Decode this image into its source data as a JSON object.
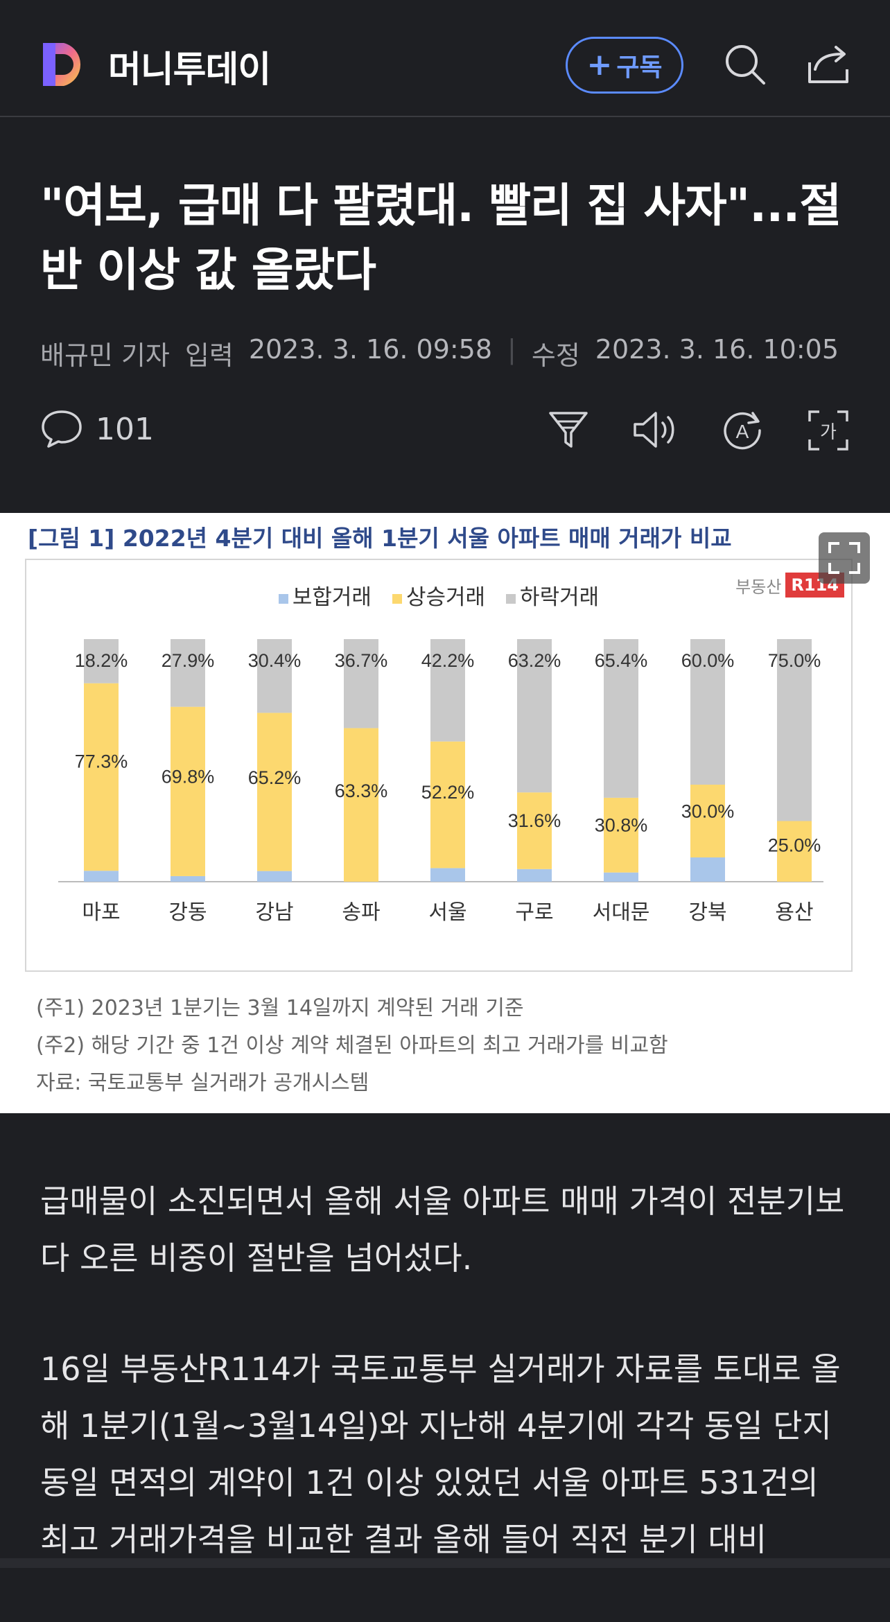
{
  "header": {
    "brand": "머니투데이",
    "subscribe_label": "구독",
    "subscribe_plus": "+"
  },
  "article": {
    "title": "\"여보, 급매 다 팔렸대. 빨리 집 사자\"...절반 이상 값 올랐다",
    "author": "배규민 기자",
    "input_label": "입력",
    "input_time": "2023. 3. 16. 09:58",
    "edit_label": "수정",
    "edit_time": "2023. 3. 16. 10:05",
    "comment_count": "101"
  },
  "figure": {
    "title": "[그림 1] 2022년 4분기 대비 올해 1분기 서울 아파트 매매 거래가 비교",
    "watermark_brand": "부동산",
    "watermark_r": "R114",
    "notes": [
      "(주1) 2023년 1분기는 3월 14일까지 계약된 거래 기준",
      "(주2) 해당 기간 중 1건 이상 계약 체결된 아파트의 최고 거래가를 비교함",
      "자료: 국토교통부 실거래가 공개시스템"
    ]
  },
  "chart_data": {
    "type": "bar",
    "stacked": true,
    "categories": [
      "마포",
      "강동",
      "강남",
      "송파",
      "서울",
      "구로",
      "서대문",
      "강북",
      "용산"
    ],
    "series": [
      {
        "name": "보합거래",
        "color": "#a9c6ea",
        "values": [
          4.5,
          2.3,
          4.4,
          0,
          5.6,
          5.2,
          3.8,
          10.0,
          0
        ],
        "labels": [
          "",
          "",
          "",
          "",
          "",
          "",
          "",
          "",
          ""
        ]
      },
      {
        "name": "상승거래",
        "color": "#fcd86f",
        "values": [
          77.3,
          69.8,
          65.2,
          63.3,
          52.2,
          31.6,
          30.8,
          30.0,
          25.0
        ],
        "labels": [
          "77.3%",
          "69.8%",
          "65.2%",
          "63.3%",
          "52.2%",
          "31.6%",
          "30.8%",
          "30.0%",
          "25.0%"
        ]
      },
      {
        "name": "하락거래",
        "color": "#c9c9c9",
        "values": [
          18.2,
          27.9,
          30.4,
          36.7,
          42.2,
          63.2,
          65.4,
          60.0,
          75.0
        ],
        "labels": [
          "18.2%",
          "27.9%",
          "30.4%",
          "36.7%",
          "42.2%",
          "63.2%",
          "65.4%",
          "60.0%",
          "75.0%"
        ]
      }
    ],
    "ylim": [
      0,
      100
    ],
    "legend": "top-center",
    "grid": false
  },
  "body": {
    "paragraphs": [
      "급매물이 소진되면서 올해 서울 아파트 매매 가격이 전분기보다 오른 비중이 절반을 넘어섰다.",
      "16일 부동산R114가 국토교통부 실거래가 자료를 토대로 올해 1분기(1월~3월14일)와 지난해 4분기에 각각 동일 단지 동일 면적의 계약이 1건 이상 있었던 서울 아파트 531건의 최고 거래가격을 비교한 결과 올해 들어 직전 분기 대비"
    ]
  },
  "colors": {
    "background": "#1e1f23",
    "accent": "#5b8bff",
    "figure_title": "#2f4a8a"
  }
}
